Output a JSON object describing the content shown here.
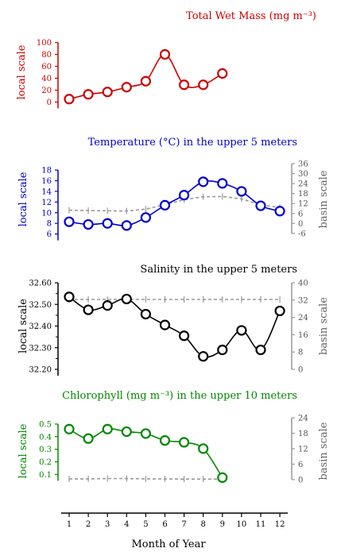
{
  "x_label": "Month of Year",
  "chart_data": [
    {
      "type": "line",
      "title": "Total Wet Mass (mg m⁻³)",
      "ylabel_left": "local scale",
      "color": "#cc0000",
      "ylim": [
        -10,
        110
      ],
      "yticks": [
        0,
        20,
        40,
        60,
        80,
        100
      ],
      "ytick_labels": [
        "0",
        "20",
        "40",
        "60",
        "80",
        "100"
      ],
      "series": [
        {
          "role": "local",
          "x": [
            1,
            2,
            3,
            4,
            5,
            6,
            7,
            8,
            9
          ],
          "values": [
            5,
            13,
            17,
            25,
            35,
            80,
            29,
            29,
            48
          ]
        }
      ]
    },
    {
      "type": "line",
      "title": "Temperature (°C) in the upper 5 meters",
      "ylabel_left": "local scale",
      "ylabel_right": "basin scale",
      "color": "#0000cc",
      "ylim": [
        5.5,
        19.5
      ],
      "yticks": [
        6,
        8,
        10,
        12,
        14,
        16,
        18
      ],
      "ytick_labels": [
        "6",
        "8",
        "10",
        "12",
        "14",
        "16",
        "18"
      ],
      "right_ylim": [
        -8,
        37
      ],
      "right_yticks": [
        -6,
        0,
        6,
        12,
        18,
        24,
        30,
        36
      ],
      "right_ytick_labels": [
        "-6",
        "0",
        "6",
        "12",
        "18",
        "24",
        "30",
        "36"
      ],
      "series": [
        {
          "role": "local",
          "x": [
            1,
            2,
            3,
            4,
            5,
            6,
            7,
            8,
            9,
            10,
            11,
            12
          ],
          "values": [
            8.3,
            7.8,
            8.0,
            7.6,
            9.1,
            11.4,
            13.3,
            15.8,
            15.5,
            14.0,
            11.3,
            10.3
          ]
        },
        {
          "role": "basin",
          "x": [
            1,
            2,
            3,
            4,
            5,
            6,
            7,
            8,
            9,
            10,
            11,
            12
          ],
          "values": [
            8.0,
            7.7,
            7.6,
            7.5,
            8.6,
            11.3,
            14.3,
            16.1,
            16.2,
            14.8,
            11.2,
            9.6
          ]
        }
      ]
    },
    {
      "type": "line",
      "title": "Salinity in the upper 5 meters",
      "ylabel_left": "local scale",
      "ylabel_right": "basin scale",
      "color": "#000000",
      "ylim": [
        32.2,
        32.6
      ],
      "yticks": [
        32.2,
        32.3,
        32.4,
        32.5,
        32.6
      ],
      "ytick_labels": [
        "32.20",
        "32.30",
        "32.40",
        "32.50",
        "32.60"
      ],
      "yminor": [
        32.25,
        32.35,
        32.45,
        32.55
      ],
      "right_ylim": [
        0,
        40
      ],
      "right_yticks": [
        0,
        8,
        16,
        24,
        32,
        40
      ],
      "right_ytick_labels": [
        "0",
        "8",
        "16",
        "24",
        "32",
        "40"
      ],
      "series": [
        {
          "role": "local",
          "x": [
            1,
            2,
            3,
            4,
            5,
            6,
            7,
            8,
            9,
            10,
            11,
            12
          ],
          "values": [
            32.535,
            32.475,
            32.495,
            32.525,
            32.455,
            32.405,
            32.355,
            32.26,
            32.29,
            32.38,
            32.29,
            32.47
          ]
        },
        {
          "role": "basin",
          "x": [
            1,
            2,
            3,
            4,
            5,
            6,
            7,
            8,
            9,
            10,
            11,
            12
          ],
          "values": [
            32.3,
            32.3,
            32.3,
            32.3,
            32.3,
            32.3,
            32.3,
            32.3,
            32.3,
            32.3,
            32.3,
            32.3
          ]
        }
      ]
    },
    {
      "type": "line",
      "title": "Chlorophyll (mg m⁻³) in the upper 10 meters",
      "ylabel_left": "local scale",
      "ylabel_right": "basin scale",
      "color": "#008800",
      "ylim": [
        0.02,
        0.55
      ],
      "yticks": [
        0.1,
        0.2,
        0.3,
        0.4,
        0.5
      ],
      "ytick_labels": [
        "0.1",
        "0.2",
        "0.3",
        "0.4",
        "0.5"
      ],
      "right_ylim": [
        -1.9,
        24
      ],
      "right_yticks": [
        0,
        6,
        12,
        18,
        24
      ],
      "right_ytick_labels": [
        "0",
        "6",
        "12",
        "18",
        "24"
      ],
      "series": [
        {
          "role": "local",
          "x": [
            1,
            2,
            3,
            4,
            5,
            6,
            7,
            8,
            9
          ],
          "values": [
            0.46,
            0.385,
            0.46,
            0.44,
            0.425,
            0.37,
            0.355,
            0.305,
            0.075
          ]
        },
        {
          "role": "basin",
          "x": [
            1,
            2,
            3,
            4,
            5,
            6,
            7,
            8,
            9
          ],
          "values": [
            0.3,
            0.3,
            0.4,
            0.4,
            0.3,
            0.3,
            0.2,
            0.2,
            0.2
          ]
        }
      ]
    }
  ],
  "x_ticks": [
    "1",
    "2",
    "3",
    "4",
    "5",
    "6",
    "7",
    "8",
    "9",
    "10",
    "11",
    "12"
  ]
}
